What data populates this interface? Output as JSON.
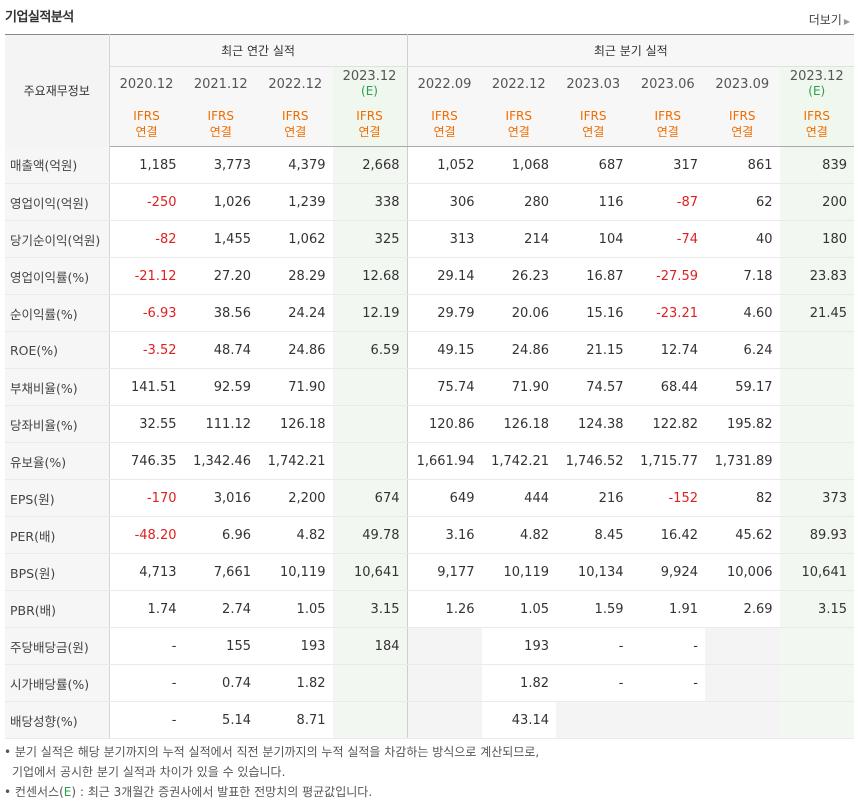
{
  "title": "기업실적분석",
  "more_label": "더보기",
  "header": {
    "row_label": "주요재무정보",
    "annual_group": "최근 연간 실적",
    "quarter_group": "최근 분기 실적",
    "columns": [
      {
        "date": "2020.12",
        "est": "",
        "ifrs": "IFRS",
        "basis": "연결"
      },
      {
        "date": "2021.12",
        "est": "",
        "ifrs": "IFRS",
        "basis": "연결"
      },
      {
        "date": "2022.12",
        "est": "",
        "ifrs": "IFRS",
        "basis": "연결"
      },
      {
        "date": "2023.12",
        "est": "(E)",
        "ifrs": "IFRS",
        "basis": "연결"
      },
      {
        "date": "2022.09",
        "est": "",
        "ifrs": "IFRS",
        "basis": "연결"
      },
      {
        "date": "2022.12",
        "est": "",
        "ifrs": "IFRS",
        "basis": "연결"
      },
      {
        "date": "2023.03",
        "est": "",
        "ifrs": "IFRS",
        "basis": "연결"
      },
      {
        "date": "2023.06",
        "est": "",
        "ifrs": "IFRS",
        "basis": "연결"
      },
      {
        "date": "2023.09",
        "est": "",
        "ifrs": "IFRS",
        "basis": "연결"
      },
      {
        "date": "2023.12",
        "est": "(E)",
        "ifrs": "IFRS",
        "basis": "연결"
      }
    ]
  },
  "rows": [
    {
      "label": "매출액(억원)",
      "values": [
        "1,185",
        "3,773",
        "4,379",
        "2,668",
        "1,052",
        "1,068",
        "687",
        "317",
        "861",
        "839"
      ]
    },
    {
      "label": "영업이익(억원)",
      "values": [
        "-250",
        "1,026",
        "1,239",
        "338",
        "306",
        "280",
        "116",
        "-87",
        "62",
        "200"
      ]
    },
    {
      "label": "당기순이익(억원)",
      "values": [
        "-82",
        "1,455",
        "1,062",
        "325",
        "313",
        "214",
        "104",
        "-74",
        "40",
        "180"
      ]
    },
    {
      "label": "영업이익률(%)",
      "values": [
        "-21.12",
        "27.20",
        "28.29",
        "12.68",
        "29.14",
        "26.23",
        "16.87",
        "-27.59",
        "7.18",
        "23.83"
      ]
    },
    {
      "label": "순이익률(%)",
      "values": [
        "-6.93",
        "38.56",
        "24.24",
        "12.19",
        "29.79",
        "20.06",
        "15.16",
        "-23.21",
        "4.60",
        "21.45"
      ]
    },
    {
      "label": "ROE(%)",
      "values": [
        "-3.52",
        "48.74",
        "24.86",
        "6.59",
        "49.15",
        "24.86",
        "21.15",
        "12.74",
        "6.24",
        ""
      ]
    },
    {
      "label": "부채비율(%)",
      "values": [
        "141.51",
        "92.59",
        "71.90",
        "",
        "75.74",
        "71.90",
        "74.57",
        "68.44",
        "59.17",
        ""
      ]
    },
    {
      "label": "당좌비율(%)",
      "values": [
        "32.55",
        "111.12",
        "126.18",
        "",
        "120.86",
        "126.18",
        "124.38",
        "122.82",
        "195.82",
        ""
      ]
    },
    {
      "label": "유보율(%)",
      "values": [
        "746.35",
        "1,342.46",
        "1,742.21",
        "",
        "1,661.94",
        "1,742.21",
        "1,746.52",
        "1,715.77",
        "1,731.89",
        ""
      ]
    },
    {
      "label": "EPS(원)",
      "values": [
        "-170",
        "3,016",
        "2,200",
        "674",
        "649",
        "444",
        "216",
        "-152",
        "82",
        "373"
      ]
    },
    {
      "label": "PER(배)",
      "values": [
        "-48.20",
        "6.96",
        "4.82",
        "49.78",
        "3.16",
        "4.82",
        "8.45",
        "16.42",
        "45.62",
        "89.93"
      ]
    },
    {
      "label": "BPS(원)",
      "values": [
        "4,713",
        "7,661",
        "10,119",
        "10,641",
        "9,177",
        "10,119",
        "10,134",
        "9,924",
        "10,006",
        "10,641"
      ]
    },
    {
      "label": "PBR(배)",
      "values": [
        "1.74",
        "2.74",
        "1.05",
        "3.15",
        "1.26",
        "1.05",
        "1.59",
        "1.91",
        "2.69",
        "3.15"
      ]
    },
    {
      "label": "주당배당금(원)",
      "values": [
        "-",
        "155",
        "193",
        "184",
        "",
        "193",
        "-",
        "-",
        "",
        ""
      ]
    },
    {
      "label": "시가배당률(%)",
      "values": [
        "-",
        "0.74",
        "1.82",
        "",
        "",
        "1.82",
        "-",
        "-",
        "",
        ""
      ]
    },
    {
      "label": "배당성향(%)",
      "values": [
        "-",
        "5.14",
        "8.71",
        "",
        "",
        "43.14",
        "",
        "",
        "",
        ""
      ]
    }
  ],
  "notes": {
    "line1": "분기 실적은 해당 분기까지의 누적 실적에서 직전 분기까지의 누적 실적을 차감하는 방식으로 계산되므로,",
    "line2": "기업에서 공시한 분기 실적과 차이가 있을 수 있습니다.",
    "line3_pre": "컨센서스(",
    "line3_e": "E",
    "line3_post": ") : 최근 3개월간 증권사에서 발표한 전망치의 평균값입니다."
  },
  "colors": {
    "negative": "#e02020",
    "ifrs": "#ef6c00",
    "estimate": "#2e9e4e",
    "estimate_bg": "#f0f7ef"
  }
}
